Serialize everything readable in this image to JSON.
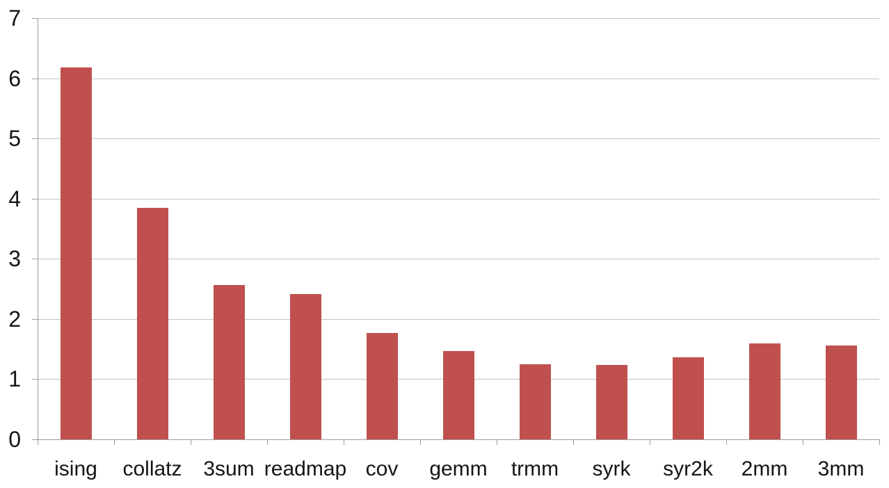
{
  "chart_data": {
    "type": "bar",
    "title": "",
    "xlabel": "",
    "ylabel": "",
    "categories": [
      "ising",
      "collatz",
      "3sum",
      "readmap",
      "cov",
      "gemm",
      "trmm",
      "syrk",
      "syr2k",
      "2mm",
      "3mm"
    ],
    "values": [
      6.18,
      3.85,
      2.57,
      2.42,
      1.77,
      1.47,
      1.25,
      1.24,
      1.36,
      1.59,
      1.56
    ],
    "ylim": [
      0,
      7
    ],
    "yticks": [
      0,
      1,
      2,
      3,
      4,
      5,
      6,
      7
    ],
    "ytick_labels": [
      "0",
      "1",
      "2",
      "3",
      "4",
      "5",
      "6",
      "7"
    ],
    "grid": true,
    "gridlines": "horizontal-only",
    "legend": "none",
    "colors": {
      "bar": "#c0504d",
      "gridline": "#c3c3c3",
      "axis": "#9d9d9d",
      "text": "#151515",
      "background": "#ffffff"
    }
  }
}
